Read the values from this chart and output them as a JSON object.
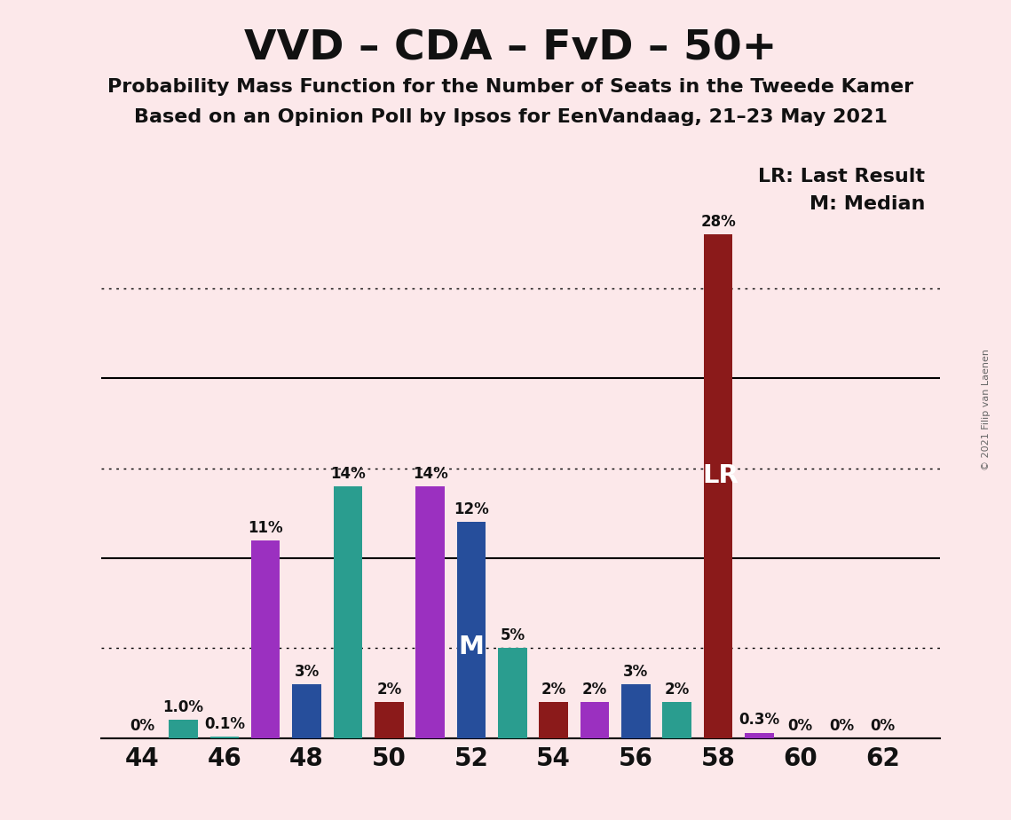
{
  "title": "VVD – CDA – FvD – 50+",
  "subtitle1": "Probability Mass Function for the Number of Seats in the Tweede Kamer",
  "subtitle2": "Based on an Opinion Poll by Ipsos for EenVandaag, 21–23 May 2021",
  "copyright": "© 2021 Filip van Laenen",
  "background_color": "#fce8ea",
  "seats": [
    44,
    45,
    46,
    47,
    48,
    49,
    50,
    51,
    52,
    53,
    54,
    55,
    56,
    57,
    58,
    59,
    60,
    61,
    62
  ],
  "values": [
    0.0,
    1.0,
    0.1,
    11.0,
    3.0,
    14.0,
    2.0,
    14.0,
    12.0,
    5.0,
    2.0,
    2.0,
    3.0,
    2.0,
    28.0,
    0.3,
    0.0,
    0.0,
    0.0
  ],
  "colors": [
    "#2a9d8f",
    "#2a9d8f",
    "#2a9d8f",
    "#9b30c0",
    "#264e9b",
    "#2a9d8f",
    "#8b1a1a",
    "#9b30c0",
    "#264e9b",
    "#2a9d8f",
    "#8b1a1a",
    "#9b30c0",
    "#264e9b",
    "#2a9d8f",
    "#8b1a1a",
    "#9b30c0",
    "#9b30c0",
    "#9b30c0",
    "#9b30c0"
  ],
  "labels": [
    "0%",
    "1.0%",
    "0.1%",
    "11%",
    "3%",
    "14%",
    "2%",
    "14%",
    "12%",
    "5%",
    "2%",
    "2%",
    "3%",
    "2%",
    "28%",
    "0.3%",
    "0%",
    "0%",
    "0%"
  ],
  "lr_seat": 58,
  "median_seat": 52,
  "solid_gridlines": [
    0,
    10,
    20
  ],
  "dotted_gridlines": [
    5,
    15,
    25
  ],
  "bar_width": 0.7,
  "axis_text_color": "#111111",
  "title_color": "#111111",
  "lr_label_color": "#ffffff",
  "median_label_color": "#ffffff",
  "ylim": [
    0,
    31
  ],
  "xlim": [
    43.0,
    63.4
  ]
}
